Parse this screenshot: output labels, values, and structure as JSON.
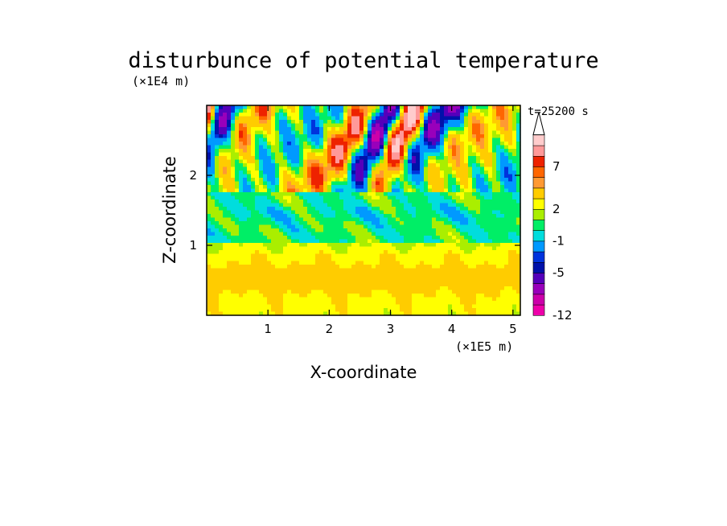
{
  "chart_data": {
    "type": "heatmap",
    "title": "disturbunce of potential temperature",
    "xlabel": "X-coordinate",
    "ylabel": "Z-coordinate",
    "x_unit": "(×1E5 m)",
    "y_unit": "(×1E4 m)",
    "time_label": "t=25200 s",
    "xlim": [
      0,
      5.12
    ],
    "ylim": [
      0,
      3.0
    ],
    "x_ticks": [
      "1",
      "2",
      "3",
      "4",
      "5"
    ],
    "x_tick_values": [
      1,
      2,
      3,
      4,
      5
    ],
    "y_ticks": [
      "1",
      "2"
    ],
    "y_tick_values": [
      1,
      2
    ],
    "colorbar": {
      "levels": [
        -12,
        -11,
        -9,
        -7,
        -5,
        -4,
        -3,
        -1,
        0,
        1,
        2,
        3,
        5,
        6,
        7,
        9,
        11,
        13
      ],
      "colors": [
        "#ee00aa",
        "#cc00aa",
        "#9900bb",
        "#5500bb",
        "#0011aa",
        "#0033dd",
        "#0099ff",
        "#00dddd",
        "#00ee66",
        "#aaee00",
        "#ffff00",
        "#ffcc00",
        "#ff9933",
        "#ff6600",
        "#ee2200",
        "#ff9999",
        "#ffcccc"
      ],
      "labels": [
        "-12",
        "-5",
        "-1",
        "2",
        "7"
      ],
      "label_values": [
        -12,
        -5,
        -1,
        2,
        7
      ],
      "extend": "max"
    },
    "field_description": "Mostly positive (yellow/orange) disturbance below z≈1.0e4 m; green/cyan band near z≈1.2–1.6e4 m; alternating red/orange and blue/purple wave pattern above z≈1.8e4 m, strongest negative values in upper left and upper right."
  }
}
